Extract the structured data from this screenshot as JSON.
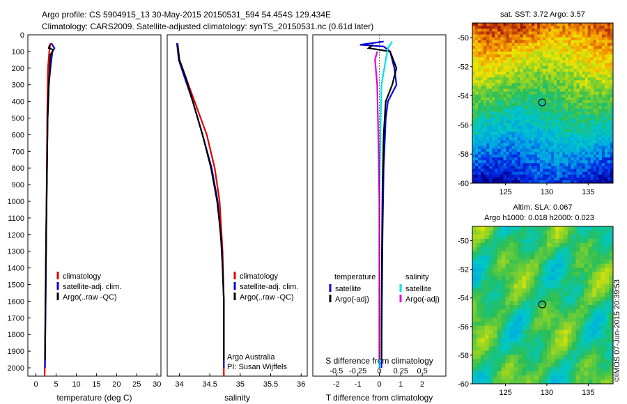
{
  "header": {
    "title_line1": "Argo profile: CS 5904915_13 30-May-2015 20150531_594 54.454S 129.434E",
    "title_line2": "Climatology: CARS2009. Satellite-adjusted climatology: synTS_20150531.nc (0.61d later)"
  },
  "credits": {
    "argo_australia": "Argo Australia",
    "pi": "PI: Susan Wijffels",
    "watermark": "©IMOS 07-Jun-2015 20:39:53"
  },
  "colors": {
    "climatology": "#e00000",
    "satellite": "#0000e0",
    "argo": "#000000",
    "satellite_s": "#00e0e0",
    "argo_s": "#e000e0"
  },
  "chart_data": [
    {
      "type": "line",
      "panel": "temperature",
      "xlabel": "temperature (deg C)",
      "ylabel": "",
      "xlim": [
        -2,
        31
      ],
      "ylim": [
        2050,
        0
      ],
      "xticks": [
        0,
        5,
        10,
        15,
        20,
        25,
        30
      ],
      "yticks": [
        0,
        100,
        200,
        300,
        400,
        500,
        600,
        700,
        800,
        900,
        1000,
        1100,
        1200,
        1300,
        1400,
        1500,
        1600,
        1700,
        1800,
        1900,
        2000
      ],
      "legend": [
        "climatology",
        "satellite-adj. clim.",
        "Argo(..raw -QC)"
      ],
      "legend_location": "lower-center",
      "series": [
        {
          "name": "climatology",
          "color": "#e00000",
          "points": [
            [
              3.6,
              50
            ],
            [
              3.3,
              100
            ],
            [
              3.0,
              200
            ],
            [
              2.9,
              300
            ],
            [
              2.8,
              500
            ],
            [
              2.7,
              800
            ],
            [
              2.55,
              1200
            ],
            [
              2.4,
              1600
            ],
            [
              2.2,
              2000
            ],
            [
              2.15,
              2050
            ]
          ]
        },
        {
          "name": "satellite-adj. clim.",
          "color": "#0000e0",
          "points": [
            [
              3.8,
              50
            ],
            [
              4.6,
              80
            ],
            [
              4.1,
              100
            ],
            [
              3.6,
              200
            ],
            [
              3.2,
              300
            ],
            [
              2.9,
              500
            ],
            [
              2.75,
              800
            ],
            [
              2.55,
              1200
            ],
            [
              2.4,
              1600
            ],
            [
              2.25,
              2000
            ]
          ]
        },
        {
          "name": "Argo(..raw -QC)",
          "color": "#000000",
          "points": [
            [
              3.4,
              60
            ],
            [
              3.2,
              80
            ],
            [
              4.3,
              90
            ],
            [
              3.6,
              120
            ],
            [
              3.4,
              200
            ],
            [
              3.2,
              300
            ],
            [
              2.9,
              500
            ],
            [
              2.75,
              800
            ],
            [
              2.55,
              1200
            ],
            [
              2.35,
              1600
            ],
            [
              2.25,
              1950
            ]
          ]
        }
      ]
    },
    {
      "type": "line",
      "panel": "salinity",
      "xlabel": "salinity",
      "ylabel": "",
      "xlim": [
        33.8,
        36.1
      ],
      "ylim": [
        2050,
        0
      ],
      "xticks": [
        34,
        34.5,
        35,
        35.5,
        36
      ],
      "legend": [
        "climatology",
        "satellite-adj. clim.",
        "Argo(..raw -QC)"
      ],
      "legend_location": "lower-right",
      "series": [
        {
          "name": "climatology",
          "color": "#e00000",
          "points": [
            [
              33.97,
              50
            ],
            [
              34.0,
              150
            ],
            [
              34.1,
              250
            ],
            [
              34.25,
              400
            ],
            [
              34.45,
              600
            ],
            [
              34.58,
              800
            ],
            [
              34.66,
              1000
            ],
            [
              34.71,
              1300
            ],
            [
              34.73,
              1600
            ],
            [
              34.73,
              2050
            ]
          ]
        },
        {
          "name": "satellite-adj. clim.",
          "color": "#0000e0",
          "points": [
            [
              33.96,
              50
            ],
            [
              33.99,
              150
            ],
            [
              34.08,
              250
            ],
            [
              34.22,
              400
            ],
            [
              34.38,
              600
            ],
            [
              34.53,
              800
            ],
            [
              34.63,
              1000
            ],
            [
              34.7,
              1300
            ],
            [
              34.73,
              1600
            ],
            [
              34.73,
              2000
            ]
          ]
        },
        {
          "name": "Argo(..raw -QC)",
          "color": "#000000",
          "points": [
            [
              33.97,
              60
            ],
            [
              34.0,
              150
            ],
            [
              34.1,
              250
            ],
            [
              34.22,
              400
            ],
            [
              34.38,
              600
            ],
            [
              34.52,
              800
            ],
            [
              34.62,
              1000
            ],
            [
              34.68,
              1200
            ],
            [
              34.71,
              1400
            ],
            [
              34.73,
              1600
            ],
            [
              34.73,
              1950
            ]
          ]
        }
      ]
    },
    {
      "type": "line",
      "panel": "difference",
      "xlabel": "T difference from climatology",
      "x2label": "S difference from climatology",
      "ylabel": "",
      "xlim": [
        -3.1,
        3.1
      ],
      "ylim": [
        2050,
        0
      ],
      "xticks": [
        -2,
        -1,
        0,
        1,
        2
      ],
      "x2ticks": [
        -0.5,
        -0.25,
        0,
        0.25,
        0.5
      ],
      "legend": [
        "temperature",
        "satellite",
        "Argo(-adj)",
        "salinity",
        "satellite",
        "Argo(-adj)"
      ],
      "legend_location": "lower-center",
      "series": [
        {
          "name": "satellite",
          "color": "#0000e0",
          "points": [
            [
              0.2,
              40
            ],
            [
              -0.9,
              60
            ],
            [
              0.2,
              70
            ],
            [
              0.5,
              100
            ],
            [
              0.7,
              200
            ],
            [
              0.8,
              300
            ],
            [
              0.4,
              400
            ],
            [
              0.3,
              500
            ],
            [
              0.2,
              800
            ],
            [
              0.15,
              1200
            ],
            [
              0.12,
              1600
            ],
            [
              0.1,
              2000
            ]
          ]
        },
        {
          "name": "Argo(-adj)",
          "color": "#000000",
          "points": [
            [
              -0.3,
              60
            ],
            [
              -0.5,
              80
            ],
            [
              0.5,
              100
            ],
            [
              0.8,
              200
            ],
            [
              0.6,
              300
            ],
            [
              0.3,
              400
            ],
            [
              0.2,
              600
            ],
            [
              0.15,
              900
            ],
            [
              0.12,
              1300
            ],
            [
              0.1,
              1700
            ],
            [
              0.1,
              1950
            ]
          ]
        },
        {
          "name": "satellite",
          "color": "#00e0e0",
          "points": [
            [
              0.6,
              40
            ],
            [
              0.4,
              80
            ],
            [
              0.3,
              150
            ],
            [
              0.1,
              300
            ],
            [
              0.05,
              600
            ],
            [
              0.0,
              1000
            ],
            [
              0.0,
              1600
            ],
            [
              0.0,
              2000
            ]
          ]
        },
        {
          "name": "Argo(-adj)",
          "color": "#e000e0",
          "points": [
            [
              -0.1,
              100
            ],
            [
              -0.2,
              150
            ],
            [
              -0.1,
              300
            ],
            [
              -0.05,
              600
            ],
            [
              0.0,
              1000
            ],
            [
              0.0,
              1600
            ],
            [
              0.0,
              1950
            ]
          ]
        }
      ]
    },
    {
      "type": "heatmap",
      "panel": "sst_map",
      "title": "sat. SST: 3.72 Argo: 3.57",
      "xlim": [
        121,
        138
      ],
      "ylim": [
        -60,
        -49
      ],
      "xticks": [
        125,
        130,
        135
      ],
      "yticks": [
        -50,
        -52,
        -54,
        -56,
        -58,
        -60
      ],
      "marker": [
        129.434,
        -54.454
      ]
    },
    {
      "type": "heatmap",
      "panel": "sla_map",
      "title": "Altim. SLA: 0.067",
      "subtitle": "Argo h1000: 0.018 h2000: 0.023",
      "xlim": [
        121,
        138
      ],
      "ylim": [
        -60,
        -49
      ],
      "xticks": [
        125,
        130,
        135
      ],
      "yticks": [
        -50,
        -52,
        -54,
        -56,
        -58,
        -60
      ],
      "marker": [
        129.434,
        -54.454
      ]
    }
  ]
}
